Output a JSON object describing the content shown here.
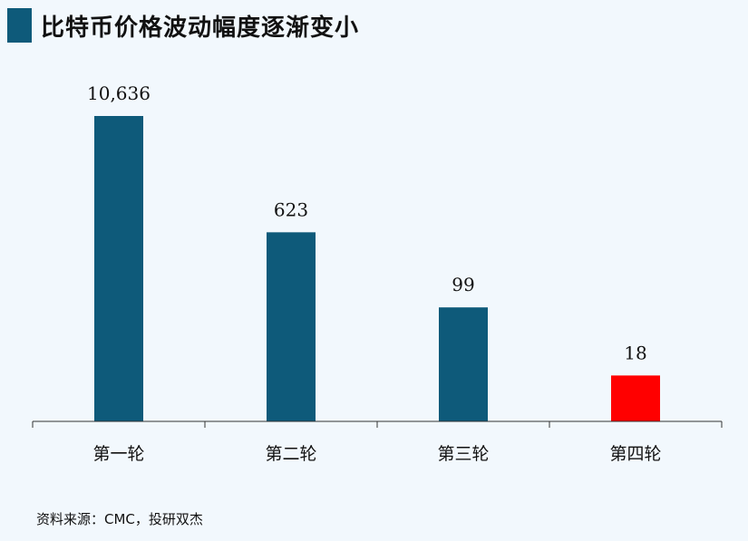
{
  "title": "比特币价格波动幅度逐渐变小",
  "source": "资料来源：CMC，投研双杰",
  "colors": {
    "title_marker": "#0e5a7a",
    "bar": "#0e5a7a",
    "bar_highlight": "#ff0000",
    "axis": "#333333"
  },
  "chart_data": {
    "type": "bar",
    "categories": [
      "第一轮",
      "第二轮",
      "第三轮",
      "第四轮"
    ],
    "values": [
      10636,
      623,
      99,
      18
    ],
    "value_labels": [
      "10,636",
      "623",
      "99",
      "18"
    ],
    "highlight_index": 3,
    "grid": false,
    "legend": "none"
  }
}
